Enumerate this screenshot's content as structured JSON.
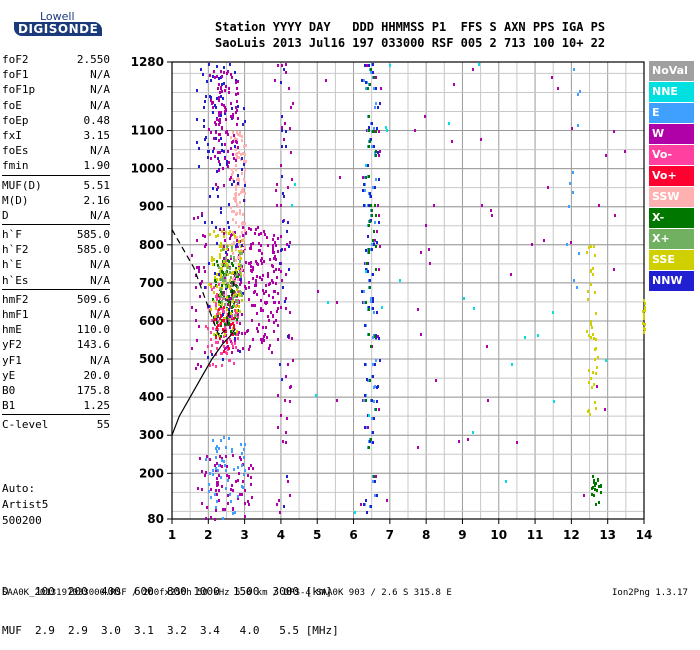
{
  "logo": {
    "line1": "Lowell",
    "line2": "DIGISONDE"
  },
  "header": {
    "line1": "Station YYYY DAY   DDD HHMMSS P1  FFS S AXN PPS IGA PS",
    "line2": "SaoLuis 2013 Jul16 197 033000 RSF 005 2 713 100 10+ 22"
  },
  "params": {
    "group1": [
      {
        "name": "foF2",
        "value": "2.550"
      },
      {
        "name": "foF1",
        "value": "N/A"
      },
      {
        "name": "foF1p",
        "value": "N/A"
      },
      {
        "name": "foE",
        "value": "N/A"
      },
      {
        "name": "foEp",
        "value": "0.48"
      },
      {
        "name": "fxI",
        "value": "3.15"
      },
      {
        "name": "foEs",
        "value": "N/A"
      },
      {
        "name": "fmin",
        "value": "1.90"
      }
    ],
    "group2": [
      {
        "name": "MUF(D)",
        "value": "5.51"
      },
      {
        "name": "M(D)",
        "value": "2.16"
      },
      {
        "name": "D",
        "value": "N/A"
      }
    ],
    "group3": [
      {
        "name": "h`F",
        "value": "585.0"
      },
      {
        "name": "h`F2",
        "value": "585.0"
      },
      {
        "name": "h`E",
        "value": "N/A"
      },
      {
        "name": "h`Es",
        "value": "N/A"
      }
    ],
    "group4": [
      {
        "name": "hmF2",
        "value": "509.6"
      },
      {
        "name": "hmF1",
        "value": "N/A"
      },
      {
        "name": "hmE",
        "value": "110.0"
      },
      {
        "name": "yF2",
        "value": "143.6"
      },
      {
        "name": "yF1",
        "value": "N/A"
      },
      {
        "name": "yE",
        "value": "20.0"
      },
      {
        "name": "B0",
        "value": "175.8"
      },
      {
        "name": "B1",
        "value": "1.25"
      }
    ],
    "group5": [
      {
        "name": "C-level",
        "value": "55"
      }
    ]
  },
  "autoscale": {
    "line1": "Auto:",
    "line2": "Artist5",
    "line3": "500200"
  },
  "legend": [
    {
      "label": "NoVal",
      "color": "#a0a0a0"
    },
    {
      "label": "NNE",
      "color": "#00e0e0"
    },
    {
      "label": "E",
      "color": "#3fa0ff"
    },
    {
      "label": "W",
      "color": "#b000a8"
    },
    {
      "label": "Vo-",
      "color": "#ff40a0"
    },
    {
      "label": "Vo+",
      "color": "#ff0030"
    },
    {
      "label": "SSW",
      "color": "#ffb0b0"
    },
    {
      "label": "X-",
      "color": "#007800"
    },
    {
      "label": "X+",
      "color": "#70b060"
    },
    {
      "label": "SSE",
      "color": "#d0d000"
    },
    {
      "label": "NNW",
      "color": "#2020d0"
    }
  ],
  "dtable": {
    "d_label": "D",
    "d_values": [
      "100",
      "200",
      "400",
      "600",
      "800",
      "1000",
      "1500",
      "3000"
    ],
    "d_unit": "[km]",
    "muf_label": "MUF",
    "muf_values": [
      "2.9",
      "2.9",
      "3.0",
      "3.1",
      "3.2",
      "3.4",
      "4.0",
      "5.5"
    ],
    "muf_unit": "[MHz]"
  },
  "footer": {
    "left": "SAA0K_2013197033000.RSF / 260fx256h 50 kHz 5.0 km / DPS-4 SAA0K 903 / 2.6 S 315.8 E",
    "right": "Ion2Png 1.3.17"
  },
  "chart_data": {
    "type": "scatter",
    "xlabel": "",
    "ylabel": "",
    "xlim": [
      1,
      14
    ],
    "ylim": [
      80,
      1280
    ],
    "x_ticks": [
      1,
      2,
      3,
      4,
      5,
      6,
      7,
      8,
      9,
      10,
      11,
      12,
      13,
      14
    ],
    "y_ticks": [
      80,
      200,
      300,
      400,
      500,
      600,
      700,
      800,
      900,
      1000,
      1100,
      1280
    ],
    "grid": true,
    "clusters": [
      {
        "name": "W",
        "color": "#b000a8",
        "fmin": 2.3,
        "fmax": 3.9,
        "hmin": 520,
        "hmax": 850,
        "count": 900
      },
      {
        "name": "Vo-",
        "color": "#ff40a0",
        "fmin": 1.9,
        "fmax": 2.8,
        "hmin": 480,
        "hmax": 700,
        "count": 260
      },
      {
        "name": "SSW",
        "color": "#ffb0b0",
        "fmin": 2.6,
        "fmax": 3.0,
        "hmin": 700,
        "hmax": 1100,
        "count": 120
      },
      {
        "name": "X-",
        "color": "#007800",
        "fmin": 2.1,
        "fmax": 2.8,
        "hmin": 560,
        "hmax": 760,
        "count": 80
      },
      {
        "name": "SSE",
        "color": "#d0d000",
        "fmin": 2.0,
        "fmax": 2.9,
        "hmin": 560,
        "hmax": 840,
        "count": 120
      },
      {
        "name": "NNW",
        "color": "#2020d0",
        "fmin": 1.8,
        "fmax": 3.0,
        "hmin": 480,
        "hmax": 1280,
        "count": 80
      },
      {
        "name": "X+",
        "color": "#70b060",
        "fmin": 2.2,
        "fmax": 2.9,
        "hmin": 600,
        "hmax": 800,
        "count": 50
      },
      {
        "name": "W",
        "color": "#b000a8",
        "fmin": 1.7,
        "fmax": 3.2,
        "hmin": 80,
        "hmax": 250,
        "count": 70
      },
      {
        "name": "E",
        "color": "#3fa0ff",
        "fmin": 1.8,
        "fmax": 3.0,
        "hmin": 80,
        "hmax": 300,
        "count": 50
      },
      {
        "name": "NNW",
        "color": "#2020d0",
        "fmin": 1.6,
        "fmax": 2.4,
        "hmin": 1000,
        "hmax": 1280,
        "count": 30
      },
      {
        "name": "W",
        "color": "#b000a8",
        "fmin": 2.0,
        "fmax": 2.8,
        "hmin": 950,
        "hmax": 1260,
        "count": 100
      },
      {
        "name": "W",
        "color": "#b000a8",
        "fmin": 6.2,
        "fmax": 6.7,
        "hmin": 80,
        "hmax": 1280,
        "count": 220
      },
      {
        "name": "E",
        "color": "#3fa0ff",
        "fmin": 6.25,
        "fmax": 6.6,
        "hmin": 80,
        "hmax": 1280,
        "count": 110
      },
      {
        "name": "NNW",
        "color": "#2020d0",
        "fmin": 6.2,
        "fmax": 6.7,
        "hmin": 80,
        "hmax": 1280,
        "count": 70
      },
      {
        "name": "X-",
        "color": "#007800",
        "fmin": 6.3,
        "fmax": 6.6,
        "hmin": 80,
        "hmax": 1280,
        "count": 40
      },
      {
        "name": "W",
        "color": "#b000a8",
        "fmin": 3.8,
        "fmax": 4.3,
        "hmin": 80,
        "hmax": 1280,
        "count": 60
      },
      {
        "name": "NNW",
        "color": "#2020d0",
        "fmin": 3.9,
        "fmax": 4.2,
        "hmin": 80,
        "hmax": 1280,
        "count": 25
      },
      {
        "name": "W",
        "color": "#b000a8",
        "fmin": 1.5,
        "fmax": 1.9,
        "hmin": 400,
        "hmax": 900,
        "count": 30
      },
      {
        "name": "SSE",
        "color": "#d0d000",
        "fmin": 12.4,
        "fmax": 12.7,
        "hmin": 350,
        "hmax": 800,
        "count": 40
      },
      {
        "name": "SSE",
        "color": "#d0d000",
        "fmin": 13.95,
        "fmax": 14.0,
        "hmin": 550,
        "hmax": 660,
        "count": 15
      },
      {
        "name": "X-",
        "color": "#007800",
        "fmin": 12.5,
        "fmax": 12.8,
        "hmin": 120,
        "hmax": 200,
        "count": 20
      },
      {
        "name": "W",
        "color": "#b000a8",
        "fmin": 5.0,
        "fmax": 13.5,
        "hmin": 80,
        "hmax": 1280,
        "count": 50
      },
      {
        "name": "NNE",
        "color": "#00e0e0",
        "fmin": 3.0,
        "fmax": 13.0,
        "hmin": 80,
        "hmax": 1280,
        "count": 25
      },
      {
        "name": "E",
        "color": "#3fa0ff",
        "fmin": 11.8,
        "fmax": 12.2,
        "hmin": 450,
        "hmax": 1280,
        "count": 12
      },
      {
        "name": "Vo+",
        "color": "#ff0030",
        "fmin": 2.1,
        "fmax": 2.7,
        "hmin": 520,
        "hmax": 640,
        "count": 25
      }
    ],
    "trace_ordinary": [
      [
        1.0,
        840
      ],
      [
        1.6,
        740
      ],
      [
        2.1,
        610
      ],
      [
        2.3,
        560
      ],
      [
        2.5,
        580
      ],
      [
        2.6,
        640
      ],
      [
        2.75,
        730
      ]
    ],
    "trace_extraordinary": [
      [
        1.0,
        300
      ],
      [
        1.2,
        350
      ],
      [
        1.5,
        400
      ],
      [
        1.8,
        450
      ],
      [
        2.1,
        500
      ],
      [
        2.4,
        540
      ],
      [
        2.6,
        560
      ],
      [
        2.75,
        580
      ]
    ]
  }
}
